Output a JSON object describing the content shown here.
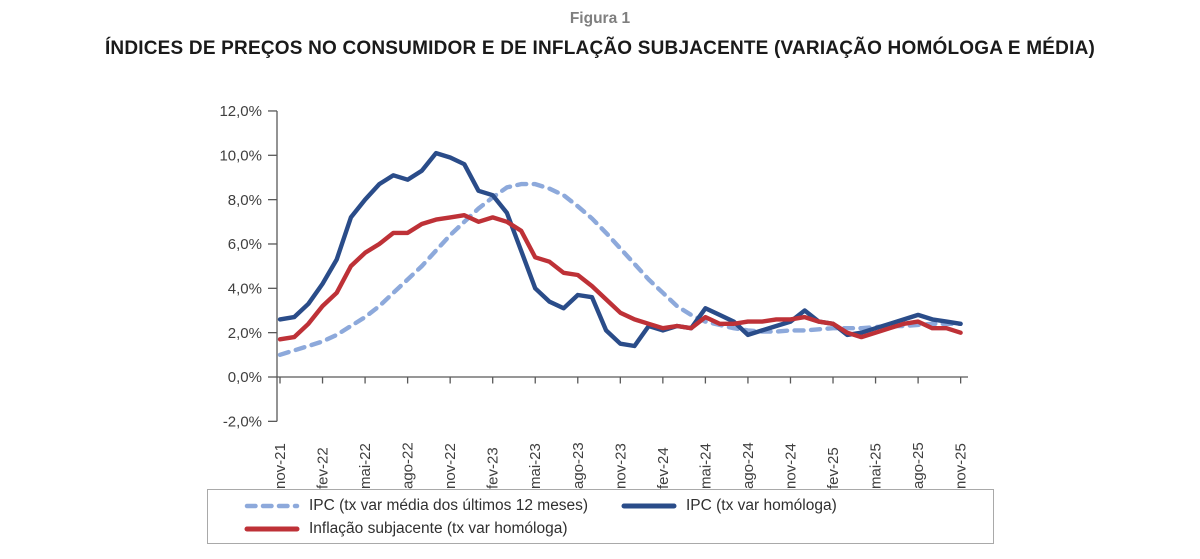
{
  "page": {
    "title": "Figura 1",
    "subtitle": "ÍNDICES DE PREÇOS NO CONSUMIDOR E DE INFLAÇÃO SUBJACENTE (VARIAÇÃO HOMÓLOGA E MÉDIA)"
  },
  "chart_data": {
    "type": "line",
    "title": "Figura 1",
    "subtitle": "ÍNDICES DE PREÇOS NO CONSUMIDOR E DE INFLAÇÃO SUBJACENTE (VARIAÇÃO HOMÓLOGA E MÉDIA)",
    "x": [
      "nov-21",
      "dez-21",
      "jan-22",
      "fev-22",
      "mar-22",
      "abr-22",
      "mai-22",
      "jun-22",
      "jul-22",
      "ago-22",
      "set-22",
      "out-22",
      "nov-22",
      "dez-22",
      "jan-23",
      "fev-23",
      "mar-23",
      "abr-23",
      "mai-23",
      "jun-23",
      "jul-23",
      "ago-23",
      "set-23",
      "out-23",
      "nov-23",
      "dez-23",
      "jan-24",
      "fev-24",
      "mar-24",
      "abr-24",
      "mai-24",
      "jun-24",
      "jul-24",
      "ago-24",
      "set-24",
      "out-24",
      "nov-24",
      "dez-24",
      "jan-25",
      "fev-25",
      "mar-25",
      "abr-25",
      "mai-25",
      "jun-25",
      "jul-25",
      "ago-25",
      "set-25",
      "out-25",
      "nov-25"
    ],
    "x_tick_labels": [
      "nov-21",
      "fev-22",
      "mai-22",
      "ago-22",
      "nov-22",
      "fev-23",
      "mai-23",
      "ago-23",
      "nov-23",
      "fev-24",
      "mai-24",
      "ago-24",
      "nov-24",
      "fev-25",
      "mai-25",
      "ago-25",
      "nov-25"
    ],
    "ylim": [
      -2,
      12
    ],
    "y_ticks": [
      12,
      10,
      8,
      6,
      4,
      2,
      0,
      -2
    ],
    "y_tick_labels": [
      "12,0%",
      "10,0%",
      "8,0%",
      "6,0%",
      "4,0%",
      "2,0%",
      "0,0%",
      "-2,0%"
    ],
    "grid": false,
    "legend_position": "bottom",
    "axis_color": "#595959",
    "series": [
      {
        "name": "IPC (tx var média dos últimos 12 meses)",
        "style": "dashed",
        "color": "#8da9db",
        "values": [
          1.0,
          1.2,
          1.4,
          1.6,
          1.9,
          2.3,
          2.7,
          3.2,
          3.8,
          4.4,
          5.0,
          5.7,
          6.4,
          7.0,
          7.6,
          8.1,
          8.55,
          8.7,
          8.7,
          8.5,
          8.2,
          7.7,
          7.15,
          6.5,
          5.8,
          5.1,
          4.4,
          3.8,
          3.2,
          2.8,
          2.5,
          2.35,
          2.2,
          2.1,
          2.05,
          2.05,
          2.1,
          2.1,
          2.15,
          2.2,
          2.2,
          2.2,
          2.25,
          2.3,
          2.3,
          2.35,
          2.4,
          2.4,
          2.4
        ]
      },
      {
        "name": "IPC (tx var homóloga)",
        "style": "solid",
        "color": "#2a4c89",
        "values": [
          2.6,
          2.7,
          3.3,
          4.2,
          5.3,
          7.2,
          8.0,
          8.7,
          9.1,
          8.9,
          9.3,
          10.1,
          9.9,
          9.6,
          8.4,
          8.2,
          7.4,
          5.7,
          4.0,
          3.4,
          3.1,
          3.7,
          3.6,
          2.1,
          1.5,
          1.4,
          2.3,
          2.1,
          2.3,
          2.2,
          3.1,
          2.8,
          2.5,
          1.9,
          2.1,
          2.3,
          2.5,
          3.0,
          2.5,
          2.4,
          1.9,
          2.0,
          2.2,
          2.4,
          2.6,
          2.8,
          2.6,
          2.5,
          2.4
        ]
      },
      {
        "name": "Inflação subjacente (tx var homóloga)",
        "style": "solid",
        "color": "#be3137",
        "values": [
          1.7,
          1.8,
          2.4,
          3.2,
          3.8,
          5.0,
          5.6,
          6.0,
          6.5,
          6.5,
          6.9,
          7.1,
          7.2,
          7.3,
          7.0,
          7.2,
          7.0,
          6.6,
          5.4,
          5.2,
          4.7,
          4.6,
          4.1,
          3.5,
          2.9,
          2.6,
          2.4,
          2.2,
          2.3,
          2.2,
          2.7,
          2.4,
          2.4,
          2.5,
          2.5,
          2.6,
          2.6,
          2.7,
          2.5,
          2.4,
          2.0,
          1.8,
          2.0,
          2.2,
          2.4,
          2.5,
          2.2,
          2.2,
          2.0
        ]
      }
    ]
  }
}
